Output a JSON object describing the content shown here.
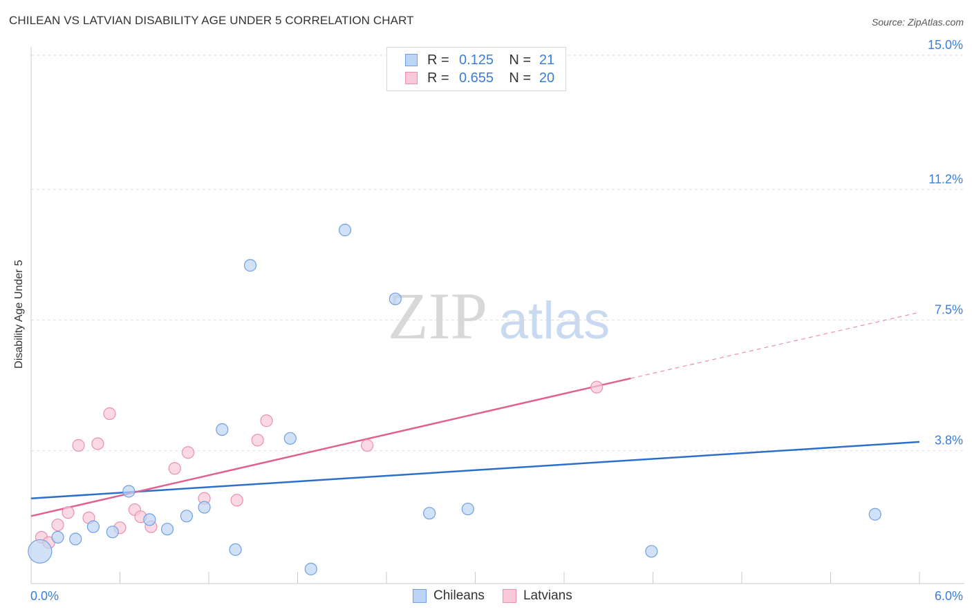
{
  "title": "CHILEAN VS LATVIAN DISABILITY AGE UNDER 5 CORRELATION CHART",
  "source": "Source: ZipAtlas.com",
  "watermark": {
    "zip": "ZIP",
    "atlas": "atlas"
  },
  "legend": {
    "rows": [
      {
        "r_label": "R =",
        "r_value": "0.125",
        "n_label": "N =",
        "n_value": "21"
      },
      {
        "r_label": "R =",
        "r_value": "0.655",
        "n_label": "N =",
        "n_value": "20"
      }
    ]
  },
  "chart_data": {
    "type": "scatter",
    "title": "CHILEAN VS LATVIAN DISABILITY AGE UNDER 5 CORRELATION CHART",
    "xlabel": "",
    "ylabel": "Disability Age Under 5",
    "xlim": [
      0.0,
      6.0
    ],
    "ylim": [
      0.0,
      15.0
    ],
    "x_tick_labels": [
      "0.0%",
      "6.0%"
    ],
    "y_ticks": [
      3.8,
      7.5,
      11.2,
      15.0
    ],
    "y_tick_labels": [
      "3.8%",
      "7.5%",
      "11.2%",
      "15.0%"
    ],
    "grid": true,
    "series": [
      {
        "name": "Chileans",
        "color": "#6fa0e0",
        "fill": "#bcd4f5",
        "line_color": "#2b6fcc",
        "trend": {
          "x": [
            0.0,
            6.0
          ],
          "y": [
            2.45,
            4.05
          ]
        },
        "points": [
          {
            "x": 0.06,
            "y": 0.95,
            "size": "large"
          },
          {
            "x": 0.18,
            "y": 1.35
          },
          {
            "x": 0.3,
            "y": 1.3
          },
          {
            "x": 0.42,
            "y": 1.65
          },
          {
            "x": 0.55,
            "y": 1.5
          },
          {
            "x": 0.66,
            "y": 2.65
          },
          {
            "x": 0.8,
            "y": 1.85
          },
          {
            "x": 0.92,
            "y": 1.58
          },
          {
            "x": 1.05,
            "y": 1.95
          },
          {
            "x": 1.17,
            "y": 2.2
          },
          {
            "x": 1.29,
            "y": 4.4
          },
          {
            "x": 1.38,
            "y": 1.0
          },
          {
            "x": 1.48,
            "y": 9.05
          },
          {
            "x": 1.75,
            "y": 4.15
          },
          {
            "x": 1.89,
            "y": 0.45
          },
          {
            "x": 2.12,
            "y": 10.05
          },
          {
            "x": 2.46,
            "y": 8.1
          },
          {
            "x": 2.69,
            "y": 2.03
          },
          {
            "x": 2.95,
            "y": 2.15
          },
          {
            "x": 4.19,
            "y": 0.95
          },
          {
            "x": 5.7,
            "y": 2.0
          }
        ]
      },
      {
        "name": "Latvians",
        "color": "#eb8fae",
        "fill": "#f9c9d8",
        "line_color": "#e06090",
        "trend": {
          "x": [
            0.0,
            4.05
          ],
          "y": [
            1.95,
            5.85
          ]
        },
        "trend_dashed": {
          "x": [
            4.05,
            6.0
          ],
          "y": [
            5.85,
            7.72
          ]
        },
        "points": [
          {
            "x": 0.07,
            "y": 1.35
          },
          {
            "x": 0.12,
            "y": 1.2
          },
          {
            "x": 0.18,
            "y": 1.7
          },
          {
            "x": 0.25,
            "y": 2.05
          },
          {
            "x": 0.32,
            "y": 3.95
          },
          {
            "x": 0.39,
            "y": 1.9
          },
          {
            "x": 0.45,
            "y": 4.0
          },
          {
            "x": 0.53,
            "y": 4.85
          },
          {
            "x": 0.6,
            "y": 1.62
          },
          {
            "x": 0.7,
            "y": 2.13
          },
          {
            "x": 0.74,
            "y": 1.93
          },
          {
            "x": 0.81,
            "y": 1.65
          },
          {
            "x": 0.97,
            "y": 3.3
          },
          {
            "x": 1.06,
            "y": 3.75
          },
          {
            "x": 1.17,
            "y": 2.45
          },
          {
            "x": 1.39,
            "y": 2.4
          },
          {
            "x": 1.53,
            "y": 4.1
          },
          {
            "x": 1.59,
            "y": 4.65
          },
          {
            "x": 2.27,
            "y": 3.95
          },
          {
            "x": 3.82,
            "y": 5.6
          }
        ]
      }
    ]
  }
}
